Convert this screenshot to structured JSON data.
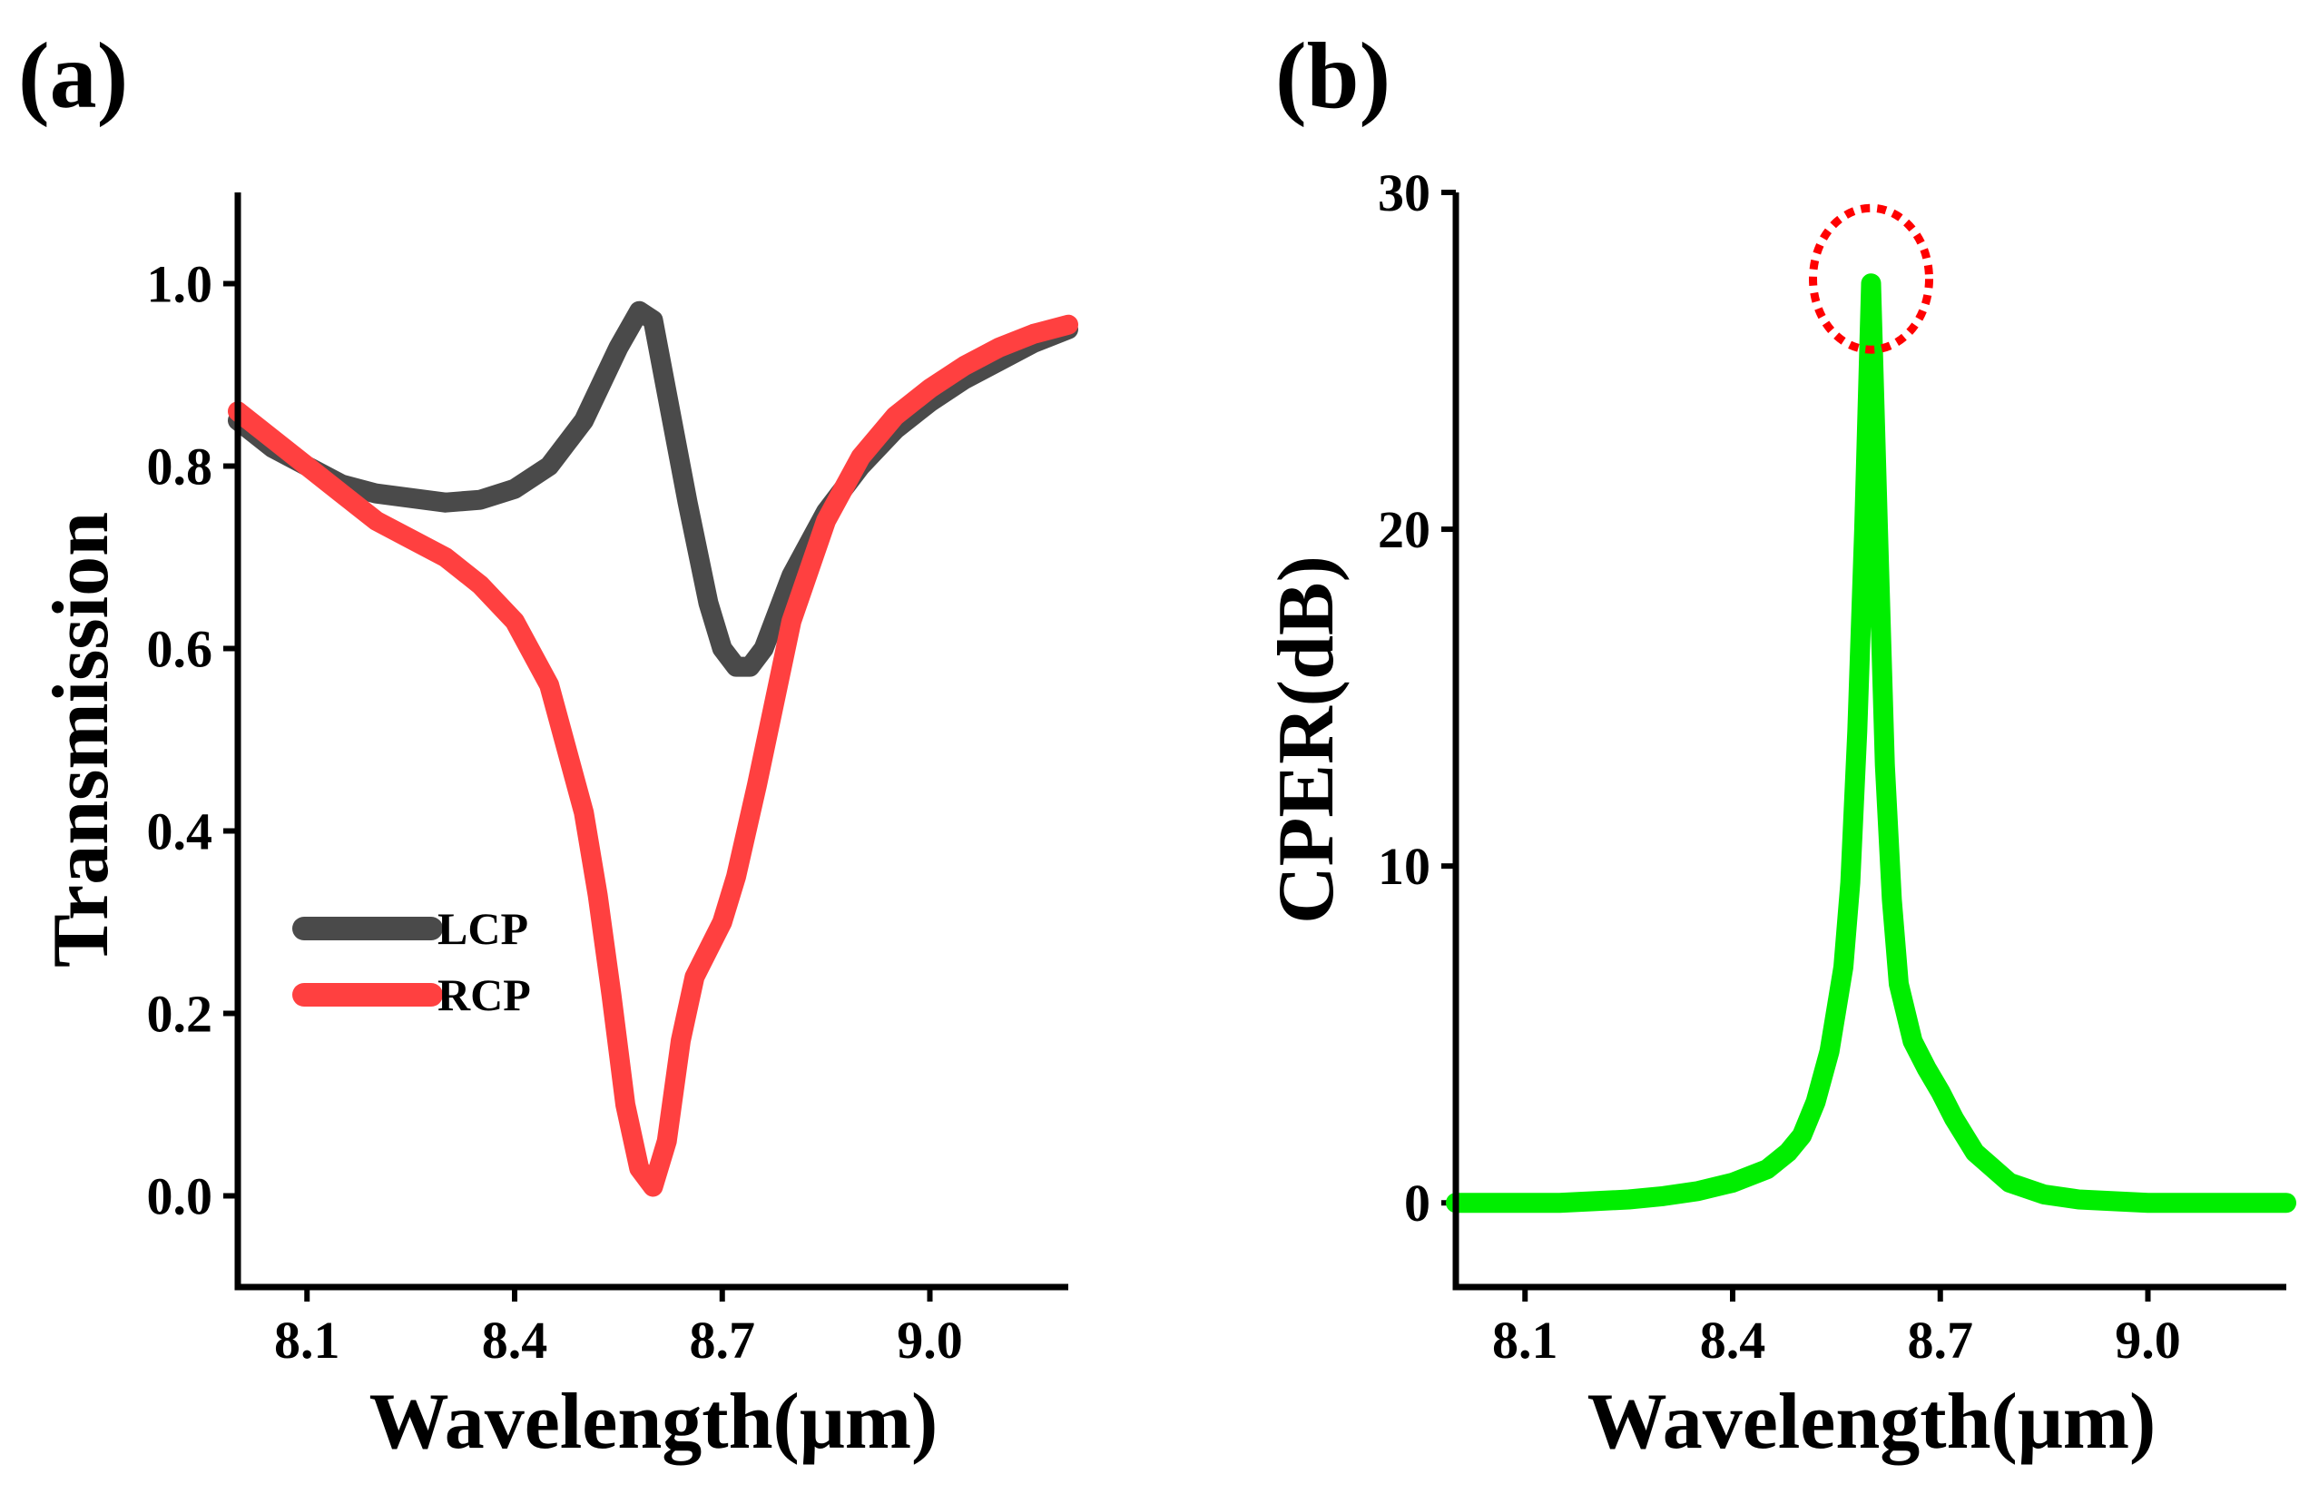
{
  "chart_data": [
    {
      "id": "a",
      "type": "line",
      "panel_label": "(a)",
      "xlabel": "Wavelength(μm)",
      "ylabel": "Transmission",
      "xlim": [
        8.0,
        9.2
      ],
      "ylim": [
        -0.1,
        1.1
      ],
      "xticks": [
        8.1,
        8.4,
        8.7,
        9.0
      ],
      "xtick_labels": [
        "8.1",
        "8.4",
        "8.7",
        "9.0"
      ],
      "yticks": [
        0.0,
        0.2,
        0.4,
        0.6,
        0.8,
        1.0
      ],
      "ytick_labels": [
        "0.0",
        "0.2",
        "0.4",
        "0.6",
        "0.8",
        "1.0"
      ],
      "legend_position": "lower-left",
      "series": [
        {
          "name": "LCP",
          "color": "#4a4a4a",
          "x": [
            8.0,
            8.05,
            8.1,
            8.15,
            8.2,
            8.25,
            8.3,
            8.35,
            8.4,
            8.45,
            8.5,
            8.55,
            8.58,
            8.6,
            8.62,
            8.65,
            8.68,
            8.7,
            8.72,
            8.74,
            8.76,
            8.8,
            8.85,
            8.9,
            8.95,
            9.0,
            9.05,
            9.1,
            9.15,
            9.2
          ],
          "y": [
            0.85,
            0.82,
            0.8,
            0.78,
            0.77,
            0.765,
            0.76,
            0.763,
            0.775,
            0.8,
            0.85,
            0.93,
            0.97,
            0.96,
            0.88,
            0.76,
            0.65,
            0.6,
            0.58,
            0.58,
            0.6,
            0.68,
            0.75,
            0.8,
            0.84,
            0.87,
            0.895,
            0.915,
            0.935,
            0.95
          ]
        },
        {
          "name": "RCP",
          "color": "#ff4040",
          "x": [
            8.0,
            8.05,
            8.1,
            8.15,
            8.2,
            8.25,
            8.3,
            8.35,
            8.4,
            8.45,
            8.5,
            8.52,
            8.54,
            8.56,
            8.58,
            8.6,
            8.62,
            8.64,
            8.66,
            8.68,
            8.7,
            8.72,
            8.75,
            8.8,
            8.85,
            8.9,
            8.95,
            9.0,
            9.05,
            9.1,
            9.15,
            9.2
          ],
          "y": [
            0.86,
            0.83,
            0.8,
            0.77,
            0.74,
            0.72,
            0.7,
            0.67,
            0.63,
            0.56,
            0.42,
            0.33,
            0.22,
            0.1,
            0.03,
            0.01,
            0.06,
            0.17,
            0.24,
            0.27,
            0.3,
            0.35,
            0.45,
            0.63,
            0.74,
            0.81,
            0.855,
            0.885,
            0.91,
            0.93,
            0.945,
            0.955
          ]
        }
      ]
    },
    {
      "id": "b",
      "type": "line",
      "panel_label": "(b)",
      "xlabel": "Wavelength(μm)",
      "ylabel": "CPER(dB)",
      "ylabel_color": "#00ee00",
      "xlim": [
        8.0,
        9.2
      ],
      "ylim": [
        -2.5,
        30
      ],
      "xticks": [
        8.1,
        8.4,
        8.7,
        9.0
      ],
      "xtick_labels": [
        "8.1",
        "8.4",
        "8.7",
        "9.0"
      ],
      "yticks": [
        0,
        10,
        20,
        30
      ],
      "ytick_labels": [
        "0",
        "10",
        "20",
        "30"
      ],
      "highlight": {
        "x": 8.6,
        "y": 27.3,
        "color": "#ff0000",
        "style": "dotted-ellipse"
      },
      "series": [
        {
          "name": "CPER",
          "color": "#00ee00",
          "x": [
            8.0,
            8.05,
            8.1,
            8.15,
            8.2,
            8.25,
            8.3,
            8.35,
            8.4,
            8.45,
            8.48,
            8.5,
            8.52,
            8.54,
            8.56,
            8.57,
            8.58,
            8.59,
            8.6,
            8.61,
            8.62,
            8.63,
            8.64,
            8.66,
            8.68,
            8.7,
            8.72,
            8.75,
            8.8,
            8.85,
            8.9,
            8.95,
            9.0,
            9.05,
            9.1,
            9.15,
            9.2
          ],
          "y": [
            0.0,
            0.0,
            0.0,
            0.0,
            0.05,
            0.1,
            0.2,
            0.35,
            0.6,
            1.0,
            1.5,
            2.0,
            3.0,
            4.5,
            7.0,
            9.5,
            14.0,
            20.0,
            27.3,
            20.0,
            13.0,
            9.0,
            6.5,
            4.8,
            4.0,
            3.3,
            2.5,
            1.5,
            0.6,
            0.25,
            0.1,
            0.05,
            0.0,
            0.0,
            0.0,
            0.0,
            0.0
          ]
        }
      ]
    }
  ]
}
